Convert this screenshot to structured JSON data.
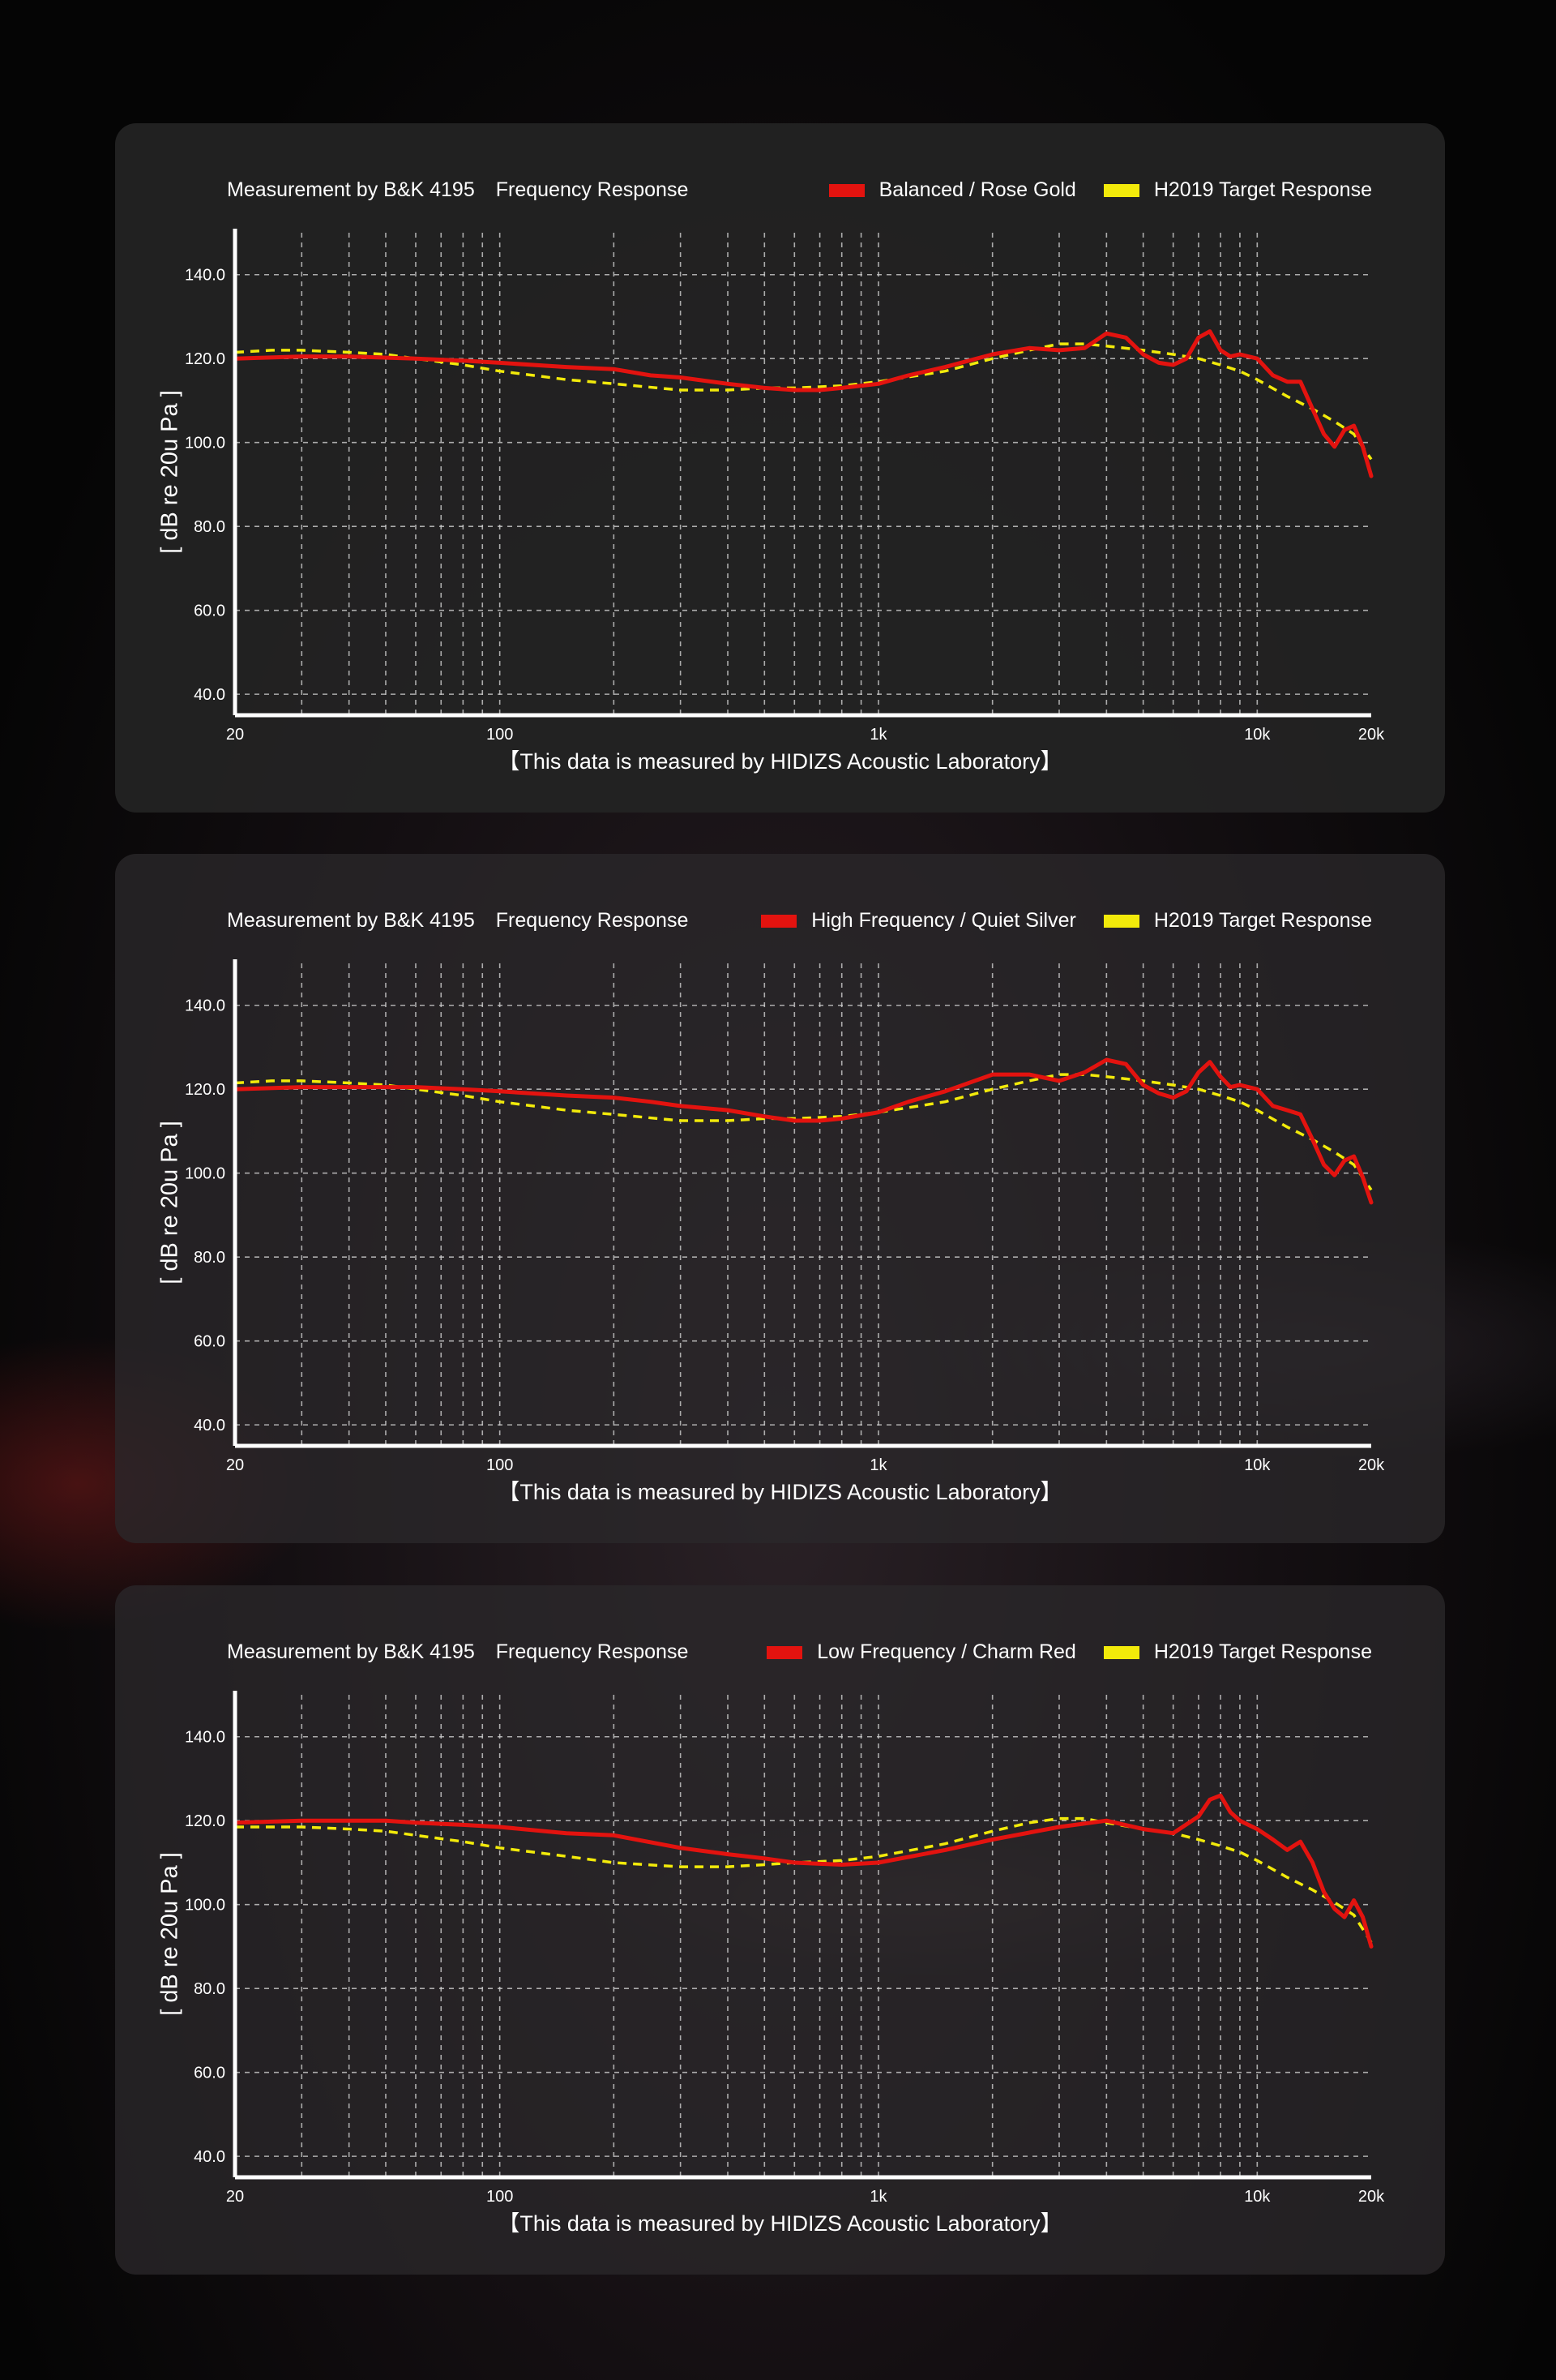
{
  "common": {
    "measurement": "Measurement by B&K 4195",
    "frequency_response": "Frequency Response",
    "target_label": "H2019 Target Response",
    "y_axis_label": "[ dB re 20u Pa ]",
    "footnote": "【This data is measured by HIDIZS Acoustic Laboratory】"
  },
  "colors": {
    "measured": "#e3130f",
    "target": "#f2ea0a",
    "grid": "#cfcfcf"
  },
  "chart_data": [
    {
      "type": "line",
      "legend_measured": "Balanced / Rose Gold",
      "legend_target": "H2019 Target Response",
      "xscale": "log",
      "xlim": [
        20,
        20000
      ],
      "ylim": [
        35,
        150
      ],
      "x_ticks": [
        "20",
        "100",
        "1k",
        "10k",
        "20k"
      ],
      "y_ticks": [
        "140.0",
        "120.0",
        "100.0",
        "80.0",
        "60.0",
        "40.0"
      ],
      "ylabel": "[ dB re 20u Pa ]",
      "series": [
        {
          "name": "Balanced / Rose Gold",
          "x": [
            20,
            30,
            40,
            60,
            80,
            100,
            150,
            200,
            250,
            300,
            400,
            500,
            600,
            700,
            800,
            1000,
            1200,
            1500,
            2000,
            2500,
            3000,
            3500,
            4000,
            4500,
            5000,
            5500,
            6000,
            6500,
            7000,
            7500,
            8000,
            8500,
            9000,
            10000,
            11000,
            12000,
            13000,
            14000,
            15000,
            16000,
            17000,
            18000,
            19000,
            20000
          ],
          "y": [
            120,
            120.5,
            120.5,
            120,
            119.5,
            119,
            118,
            117.5,
            116,
            115.5,
            114,
            113,
            112.5,
            112.5,
            113,
            114,
            116,
            118,
            121,
            122.5,
            122,
            122.5,
            126,
            125,
            121,
            119,
            118.5,
            120,
            125,
            126.5,
            122,
            120.5,
            121,
            120,
            116,
            114.5,
            114.5,
            108,
            102,
            99,
            103,
            104,
            99,
            92
          ]
        },
        {
          "name": "H2019 Target Response",
          "x": [
            20,
            25,
            30,
            40,
            50,
            60,
            80,
            100,
            150,
            200,
            300,
            400,
            500,
            600,
            800,
            1000,
            1500,
            2000,
            2500,
            3000,
            3500,
            4000,
            5000,
            6000,
            7000,
            8000,
            9000,
            10000,
            12000,
            14000,
            16000,
            18000,
            20000
          ],
          "y": [
            121.5,
            122,
            122,
            121.5,
            121,
            120,
            118.5,
            117,
            115,
            114,
            112.5,
            112.5,
            113,
            113,
            113.5,
            114.5,
            117,
            120,
            122,
            123.5,
            123.5,
            123,
            122,
            121,
            120,
            118.5,
            117,
            115,
            111,
            108,
            105,
            102,
            96
          ]
        }
      ]
    },
    {
      "type": "line",
      "legend_measured": "High Frequency / Quiet Silver",
      "legend_target": "H2019 Target Response",
      "xscale": "log",
      "xlim": [
        20,
        20000
      ],
      "ylim": [
        35,
        150
      ],
      "x_ticks": [
        "20",
        "100",
        "1k",
        "10k",
        "20k"
      ],
      "y_ticks": [
        "140.0",
        "120.0",
        "100.0",
        "80.0",
        "60.0",
        "40.0"
      ],
      "ylabel": "[ dB re 20u Pa ]",
      "series": [
        {
          "name": "High Frequency / Quiet Silver",
          "x": [
            20,
            30,
            40,
            60,
            80,
            100,
            150,
            200,
            250,
            300,
            400,
            500,
            600,
            700,
            800,
            1000,
            1200,
            1500,
            2000,
            2500,
            3000,
            3500,
            4000,
            4500,
            5000,
            5500,
            6000,
            6500,
            7000,
            7500,
            8000,
            8500,
            9000,
            10000,
            11000,
            12000,
            13000,
            14000,
            15000,
            16000,
            17000,
            18000,
            19000,
            20000
          ],
          "y": [
            120,
            120.5,
            120.5,
            120.5,
            120,
            119.5,
            118.5,
            118,
            117,
            116,
            115,
            113.5,
            112.5,
            112.5,
            113,
            114.5,
            117,
            119.5,
            123.5,
            123.5,
            122,
            124,
            127,
            126,
            121,
            119,
            118,
            119.5,
            124,
            126.5,
            123,
            120.5,
            121,
            120,
            116,
            115,
            114,
            108,
            102,
            99.5,
            103,
            104,
            99,
            93
          ]
        },
        {
          "name": "H2019 Target Response",
          "x": [
            20,
            25,
            30,
            40,
            50,
            60,
            80,
            100,
            150,
            200,
            300,
            400,
            500,
            600,
            800,
            1000,
            1500,
            2000,
            2500,
            3000,
            3500,
            4000,
            5000,
            6000,
            7000,
            8000,
            9000,
            10000,
            12000,
            14000,
            16000,
            18000,
            20000
          ],
          "y": [
            121.5,
            122,
            122,
            121.5,
            121,
            120,
            118.5,
            117,
            115,
            114,
            112.5,
            112.5,
            113,
            113,
            113.5,
            114.5,
            117,
            120,
            122,
            123.5,
            123.5,
            123,
            122,
            121,
            120,
            118.5,
            117,
            115,
            111,
            108,
            105,
            102,
            96
          ]
        }
      ]
    },
    {
      "type": "line",
      "legend_measured": "Low Frequency / Charm Red",
      "legend_target": "H2019 Target Response",
      "xscale": "log",
      "xlim": [
        20,
        20000
      ],
      "ylim": [
        35,
        150
      ],
      "x_ticks": [
        "20",
        "100",
        "1k",
        "10k",
        "20k"
      ],
      "y_ticks": [
        "140.0",
        "120.0",
        "100.0",
        "80.0",
        "60.0",
        "40.0"
      ],
      "ylabel": "[ dB re 20u Pa ]",
      "series": [
        {
          "name": "Low Frequency / Charm Red",
          "x": [
            20,
            30,
            40,
            50,
            60,
            80,
            100,
            150,
            200,
            300,
            400,
            500,
            600,
            800,
            1000,
            1500,
            2000,
            3000,
            4000,
            5000,
            6000,
            7000,
            7500,
            8000,
            8500,
            9000,
            10000,
            11000,
            12000,
            13000,
            14000,
            15000,
            16000,
            17000,
            18000,
            19000,
            20000
          ],
          "y": [
            119.5,
            120,
            120,
            120,
            119.5,
            119,
            118.5,
            117,
            116.5,
            113.5,
            112,
            111,
            110,
            109.5,
            110,
            113,
            115.5,
            118.5,
            120,
            118,
            117,
            121,
            125,
            126,
            122,
            120,
            118,
            115.5,
            113,
            115,
            110,
            103,
            99,
            97,
            101,
            97,
            90
          ]
        },
        {
          "name": "H2019 Target Response",
          "x": [
            20,
            25,
            30,
            40,
            50,
            60,
            80,
            100,
            150,
            200,
            300,
            400,
            500,
            600,
            800,
            1000,
            1500,
            2000,
            2500,
            3000,
            3500,
            4000,
            5000,
            6000,
            7000,
            8000,
            9000,
            10000,
            12000,
            14000,
            16000,
            18000,
            20000
          ],
          "y": [
            118.5,
            118.5,
            118.5,
            118,
            117.5,
            116.5,
            115,
            113.5,
            111.5,
            110,
            109,
            109,
            109.5,
            110,
            110.5,
            111.5,
            114.5,
            117.5,
            119.5,
            120.5,
            120.5,
            119.5,
            118,
            117,
            115.5,
            114,
            112.5,
            110.5,
            106.5,
            103.5,
            100.5,
            97.5,
            91
          ]
        }
      ]
    }
  ]
}
